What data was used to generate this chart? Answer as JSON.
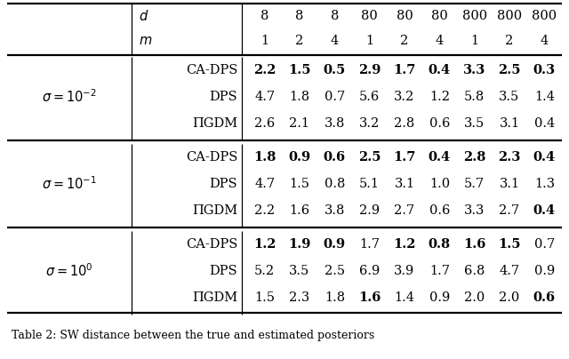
{
  "header_d": [
    "8",
    "8",
    "8",
    "80",
    "80",
    "80",
    "800",
    "800",
    "800"
  ],
  "header_m": [
    "1",
    "2",
    "4",
    "1",
    "2",
    "4",
    "1",
    "2",
    "4"
  ],
  "sections": [
    {
      "sigma_latex": "$\\sigma = 10^{-2}$",
      "rows": [
        {
          "method": "CA-DPS",
          "values": [
            "2.2",
            "1.5",
            "0.5",
            "2.9",
            "1.7",
            "0.4",
            "3.3",
            "2.5",
            "0.3"
          ],
          "bold": [
            true,
            true,
            true,
            true,
            true,
            true,
            true,
            true,
            true
          ]
        },
        {
          "method": "DPS",
          "values": [
            "4.7",
            "1.8",
            "0.7",
            "5.6",
            "3.2",
            "1.2",
            "5.8",
            "3.5",
            "1.4"
          ],
          "bold": [
            false,
            false,
            false,
            false,
            false,
            false,
            false,
            false,
            false
          ]
        },
        {
          "method": "ΠGDM",
          "values": [
            "2.6",
            "2.1",
            "3.8",
            "3.2",
            "2.8",
            "0.6",
            "3.5",
            "3.1",
            "0.4"
          ],
          "bold": [
            false,
            false,
            false,
            false,
            false,
            false,
            false,
            false,
            false
          ]
        }
      ]
    },
    {
      "sigma_latex": "$\\sigma = 10^{-1}$",
      "rows": [
        {
          "method": "CA-DPS",
          "values": [
            "1.8",
            "0.9",
            "0.6",
            "2.5",
            "1.7",
            "0.4",
            "2.8",
            "2.3",
            "0.4"
          ],
          "bold": [
            true,
            true,
            true,
            true,
            true,
            true,
            true,
            true,
            true
          ]
        },
        {
          "method": "DPS",
          "values": [
            "4.7",
            "1.5",
            "0.8",
            "5.1",
            "3.1",
            "1.0",
            "5.7",
            "3.1",
            "1.3"
          ],
          "bold": [
            false,
            false,
            false,
            false,
            false,
            false,
            false,
            false,
            false
          ]
        },
        {
          "method": "ΠGDM",
          "values": [
            "2.2",
            "1.6",
            "3.8",
            "2.9",
            "2.7",
            "0.6",
            "3.3",
            "2.7",
            "0.4"
          ],
          "bold": [
            false,
            false,
            false,
            false,
            false,
            false,
            false,
            false,
            true
          ]
        }
      ]
    },
    {
      "sigma_latex": "$\\sigma = 10^{0}$",
      "rows": [
        {
          "method": "CA-DPS",
          "values": [
            "1.2",
            "1.9",
            "0.9",
            "1.7",
            "1.2",
            "0.8",
            "1.6",
            "1.5",
            "0.7"
          ],
          "bold": [
            true,
            true,
            true,
            false,
            true,
            true,
            true,
            true,
            false
          ]
        },
        {
          "method": "DPS",
          "values": [
            "5.2",
            "3.5",
            "2.5",
            "6.9",
            "3.9",
            "1.7",
            "6.8",
            "4.7",
            "0.9"
          ],
          "bold": [
            false,
            false,
            false,
            false,
            false,
            false,
            false,
            false,
            false
          ]
        },
        {
          "method": "ΠGDM",
          "values": [
            "1.5",
            "2.3",
            "1.8",
            "1.6",
            "1.4",
            "0.9",
            "2.0",
            "2.0",
            "0.6"
          ],
          "bold": [
            false,
            false,
            false,
            true,
            false,
            false,
            false,
            false,
            true
          ]
        }
      ]
    }
  ],
  "caption": "Table 2: SW distance between the true and estimated posteriors",
  "figsize": [
    6.4,
    4.04
  ],
  "dpi": 100,
  "fs_sigma": 10.5,
  "fs_header": 10.5,
  "fs_data": 10.5,
  "fs_caption": 9.0,
  "lw_thick": 1.6,
  "lw_thin": 0.9
}
